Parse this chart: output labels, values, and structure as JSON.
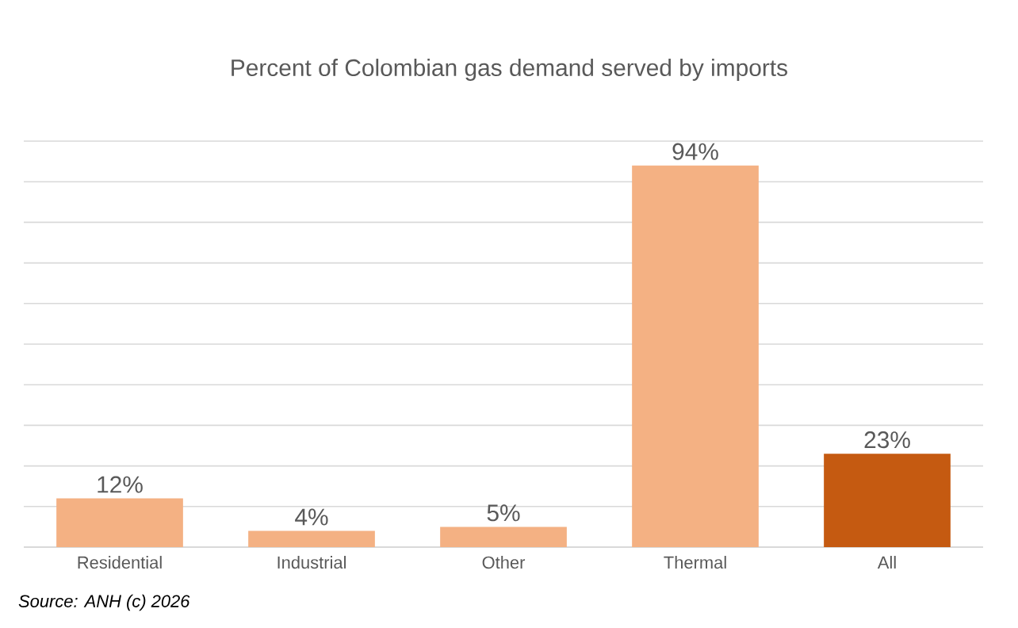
{
  "chart_data": {
    "type": "bar",
    "title": "Percent of Colombian gas demand served by imports",
    "categories": [
      "Residential",
      "Industrial",
      "Other",
      "Thermal",
      "All"
    ],
    "values": [
      12,
      4,
      5,
      94,
      23
    ],
    "value_labels": [
      "12%",
      "4%",
      "5%",
      "94%",
      "23%"
    ],
    "colors": [
      "#f4b183",
      "#f4b183",
      "#f4b183",
      "#f4b183",
      "#c55a11"
    ],
    "ylim": [
      0,
      100
    ],
    "yticks": [
      {
        "value": 0,
        "label": null
      },
      {
        "value": 10,
        "label": null
      },
      {
        "value": 20,
        "label": null
      },
      {
        "value": 30,
        "label": null
      },
      {
        "value": 40,
        "label": null
      },
      {
        "value": 50,
        "label": null
      },
      {
        "value": 60,
        "label": null
      },
      {
        "value": 70,
        "label": null
      },
      {
        "value": 80,
        "label": null
      },
      {
        "value": 90,
        "label": null
      },
      {
        "value": 100,
        "label": null
      }
    ],
    "tick_labels": "x",
    "grid": "y",
    "annotations": [
      "Source: ANH (c) 2026"
    ]
  }
}
